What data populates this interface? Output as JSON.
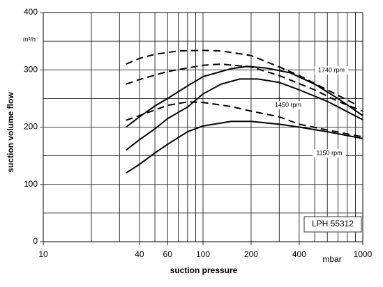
{
  "chart_data": {
    "type": "line",
    "log_x": true,
    "grid": true,
    "xlabel": "suction pressure",
    "ylabel": "suction volume flow",
    "y_unit": "m³/h",
    "x_unit": "mbar",
    "xlim": [
      10,
      1000
    ],
    "ylim": [
      0,
      400
    ],
    "xticks": [
      10,
      40,
      60,
      100,
      200,
      400,
      1000
    ],
    "xminor": [
      20,
      30,
      50,
      70,
      80,
      90,
      300,
      500,
      600,
      700,
      800,
      900
    ],
    "yticks": [
      0,
      100,
      200,
      300,
      400
    ],
    "yminor": [
      50,
      150,
      250,
      350
    ],
    "series": [
      {
        "style": "dashed",
        "color": "#000000",
        "x": [
          33,
          40,
          50,
          70,
          100,
          130,
          200,
          300,
          400,
          600,
          900
        ],
        "values": [
          310,
          320,
          327,
          333,
          334,
          333,
          325,
          305,
          290,
          265,
          240
        ]
      },
      {
        "style": "solid",
        "color": "#000000",
        "x": [
          33,
          40,
          50,
          60,
          80,
          100,
          150,
          190,
          250,
          350,
          500,
          700,
          1000
        ],
        "values": [
          200,
          218,
          237,
          250,
          272,
          288,
          302,
          306,
          303,
          295,
          275,
          250,
          220
        ]
      },
      {
        "style": "dashed",
        "color": "#000000",
        "x": [
          33,
          40,
          60,
          100,
          130,
          200,
          300,
          500,
          700,
          1000
        ],
        "values": [
          275,
          283,
          297,
          308,
          310,
          305,
          290,
          265,
          245,
          228
        ]
      },
      {
        "style": "solid",
        "color": "#000000",
        "x": [
          33,
          40,
          50,
          60,
          80,
          100,
          130,
          170,
          220,
          300,
          400,
          600,
          1000
        ],
        "values": [
          160,
          178,
          197,
          215,
          235,
          258,
          275,
          284,
          284,
          278,
          265,
          245,
          213
        ]
      },
      {
        "style": "dashed",
        "color": "#000000",
        "x": [
          33,
          40,
          60,
          80,
          100,
          150,
          200,
          300,
          400,
          600,
          1000
        ],
        "values": [
          212,
          220,
          238,
          244,
          243,
          236,
          228,
          218,
          205,
          195,
          183
        ]
      },
      {
        "style": "solid",
        "color": "#000000",
        "x": [
          33,
          40,
          50,
          60,
          80,
          100,
          150,
          200,
          300,
          400,
          600,
          1000
        ],
        "values": [
          120,
          135,
          155,
          170,
          192,
          202,
          210,
          210,
          205,
          200,
          192,
          180
        ]
      }
    ],
    "annotations": [
      "1740 rpm",
      "1450 rpm",
      "1150 rpm",
      "LPH 55312"
    ]
  }
}
